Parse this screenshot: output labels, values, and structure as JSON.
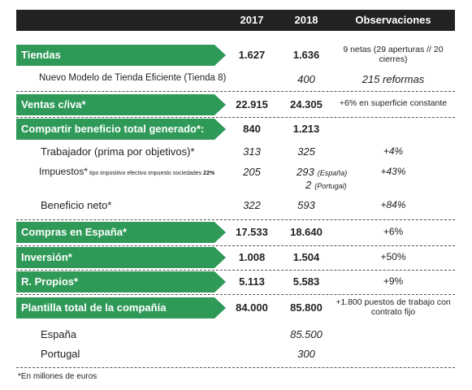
{
  "header": {
    "columns": [
      "2017",
      "2018",
      "Observaciones"
    ]
  },
  "rows": [
    {
      "kind": "green",
      "label": "Tiendas",
      "v2017": "1.627",
      "v2018": "1.636",
      "note": "9 netas (29 aperturas // 20 cierres)"
    },
    {
      "kind": "sub",
      "label": "Nuevo Modelo de Tienda Eficiente (Tienda 8)",
      "v2018": "400",
      "note": "215 reformas"
    },
    {
      "kind": "green",
      "label": "Ventas c/iva*",
      "v2017": "22.915",
      "v2018": "24.305",
      "note": "+6% en superficie constante"
    },
    {
      "kind": "green",
      "label": "Compartir beneficio total generado*:",
      "v2017": "840",
      "v2018": "1.213"
    },
    {
      "kind": "item",
      "label": "Trabajador (prima por objetivos)*",
      "v2017": "313",
      "v2018": "325",
      "note": "+4%"
    },
    {
      "kind": "tax",
      "label": "Impuestos*",
      "sublabel": "tipo impositivo efectivo impuesto sociedades",
      "subvalue": "22%",
      "v2017": "205",
      "v2018": "293",
      "v2018_note": "(España)",
      "v2018b": "2",
      "v2018b_note": "(Portugal)",
      "note": "+43%"
    },
    {
      "kind": "item",
      "label": "Beneficio neto*",
      "v2017": "322",
      "v2018": "593",
      "note": "+84%"
    },
    {
      "kind": "green",
      "label": "Compras en España*",
      "v2017": "17.533",
      "v2018": "18.640",
      "note": "+6%"
    },
    {
      "kind": "green",
      "label": "Inversión*",
      "v2017": "1.008",
      "v2018": "1.504",
      "note": "+50%"
    },
    {
      "kind": "green",
      "label": "R. Propios*",
      "v2017": "5.113",
      "v2018": "5.583",
      "note": "+9%"
    },
    {
      "kind": "green",
      "label": "Plantilla total de la compañía",
      "v2017": "84.000",
      "v2018": "85.800",
      "note": "+1.800 puestos de trabajo con contrato fijo"
    },
    {
      "kind": "plain",
      "label": "España",
      "v2018": "85.500"
    },
    {
      "kind": "plain",
      "label": "Portugal",
      "v2018": "300"
    }
  ],
  "footnote": "*En millones de euros"
}
